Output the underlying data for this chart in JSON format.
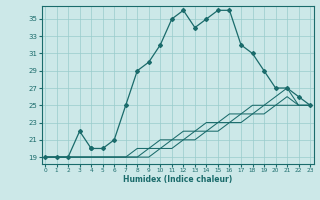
{
  "title": "",
  "xlabel": "Humidex (Indice chaleur)",
  "bg_color": "#cce8e8",
  "line_color": "#1a6b6b",
  "grid_color": "#99cccc",
  "x_ticks": [
    0,
    1,
    2,
    3,
    4,
    5,
    6,
    7,
    8,
    9,
    10,
    11,
    12,
    13,
    14,
    15,
    16,
    17,
    18,
    19,
    20,
    21,
    22,
    23
  ],
  "y_ticks": [
    19,
    21,
    23,
    25,
    27,
    29,
    31,
    33,
    35
  ],
  "xlim": [
    -0.3,
    23.3
  ],
  "ylim": [
    18.2,
    36.5
  ],
  "series1_x": [
    0,
    1,
    2,
    3,
    4,
    4,
    5,
    6,
    7,
    8,
    9,
    10,
    11,
    12,
    13,
    14,
    15,
    16,
    17,
    18,
    19,
    20,
    21,
    22,
    23
  ],
  "series1_y": [
    19,
    19,
    19,
    22,
    20,
    20,
    20,
    21,
    25,
    29,
    30,
    32,
    35,
    36,
    34,
    35,
    36,
    36,
    32,
    31,
    29,
    27,
    27,
    26,
    25
  ],
  "series2": [
    19,
    19,
    19,
    19,
    19,
    19,
    19,
    19,
    19,
    19,
    20,
    20,
    21,
    21,
    22,
    22,
    23,
    23,
    24,
    24,
    25,
    25,
    25,
    25
  ],
  "series3": [
    19,
    19,
    19,
    19,
    19,
    19,
    19,
    19,
    19,
    20,
    20,
    21,
    21,
    22,
    22,
    23,
    23,
    24,
    24,
    25,
    25,
    26,
    25,
    25
  ],
  "series4": [
    19,
    19,
    19,
    19,
    19,
    19,
    19,
    19,
    20,
    20,
    21,
    21,
    22,
    22,
    23,
    23,
    24,
    24,
    25,
    25,
    26,
    27,
    25,
    25
  ]
}
